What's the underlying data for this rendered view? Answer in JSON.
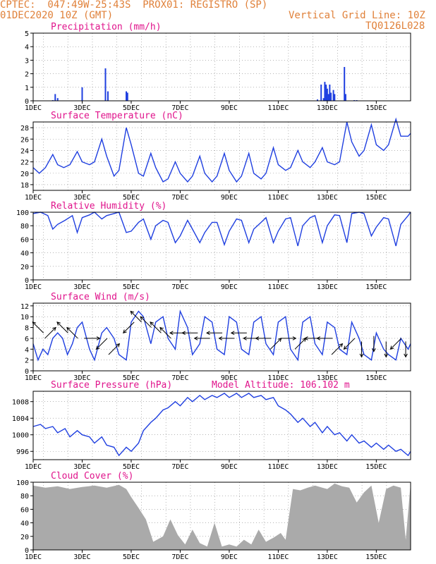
{
  "header": {
    "line1": "CPTEC:  047:49W-25:43S  PROX01: REGISTRO (SP)",
    "line2": "01DEC2020 10Z (GMT)",
    "grid_note": "Vertical Grid Line: 10Z",
    "code": "TQ0126L028"
  },
  "colors": {
    "header_text": "#e0813a",
    "panel_title": "#e0148c",
    "series": "#1f3fe0",
    "cloud_fill": "#aaaaaa",
    "axis": "#000000"
  },
  "chart_data": [
    {
      "type": "bar",
      "title": "Precipitation (mm/h)",
      "x_ticks": [
        "1DEC",
        "3DEC",
        "5DEC",
        "7DEC",
        "9DEC",
        "11DEC",
        "13DEC",
        "15DEC"
      ],
      "x_unit": "days since 1DEC 00Z",
      "xlim": [
        0,
        15.4
      ],
      "ylim": [
        0,
        5
      ],
      "y_ticks": [
        0,
        1,
        2,
        3,
        4,
        5
      ],
      "x": [
        0.8,
        0.9,
        1.0,
        2.0,
        2.95,
        3.05,
        3.8,
        3.85,
        11.6,
        11.75,
        11.85,
        11.9,
        11.95,
        12.0,
        12.05,
        12.1,
        12.15,
        12.25,
        12.3,
        12.7,
        12.75,
        13.1,
        13.2
      ],
      "values": [
        0.05,
        0.5,
        0.2,
        1.0,
        2.4,
        0.7,
        0.7,
        0.6,
        0.1,
        1.2,
        0.2,
        1.4,
        1.2,
        0.9,
        0.5,
        1.2,
        0.6,
        0.8,
        0.5,
        2.5,
        0.5,
        0.05,
        0.05
      ]
    },
    {
      "type": "line",
      "title": "Surface Temperature (nC)",
      "x_ticks": [
        "1DEC",
        "3DEC",
        "5DEC",
        "7DEC",
        "9DEC",
        "11DEC",
        "13DEC",
        "15DEC"
      ],
      "xlim": [
        0,
        15.4
      ],
      "ylim": [
        17,
        29
      ],
      "y_ticks": [
        18,
        20,
        22,
        24,
        26,
        28
      ],
      "x": [
        0,
        0.25,
        0.5,
        0.8,
        1.0,
        1.25,
        1.5,
        1.8,
        2.0,
        2.3,
        2.5,
        2.8,
        3.0,
        3.3,
        3.5,
        3.8,
        4.0,
        4.3,
        4.5,
        4.8,
        5.0,
        5.3,
        5.5,
        5.8,
        6.0,
        6.3,
        6.5,
        6.8,
        7.0,
        7.3,
        7.5,
        7.8,
        8.0,
        8.3,
        8.5,
        8.8,
        9.0,
        9.3,
        9.5,
        9.8,
        10.0,
        10.3,
        10.5,
        10.8,
        11.0,
        11.3,
        11.5,
        11.8,
        12.0,
        12.3,
        12.5,
        12.8,
        13.0,
        13.3,
        13.5,
        13.8,
        14.0,
        14.3,
        14.5,
        14.8,
        15.0,
        15.3,
        15.4
      ],
      "values": [
        21,
        20,
        21,
        23.3,
        21.5,
        21,
        21.5,
        23.8,
        22,
        21.5,
        22,
        26,
        23,
        19.5,
        20.5,
        28,
        25,
        20,
        19.5,
        23.5,
        21,
        18.5,
        19,
        22,
        20,
        18.5,
        19.5,
        23,
        20,
        18.5,
        19.5,
        23.5,
        20.5,
        18.5,
        19.5,
        23.5,
        20,
        19,
        20,
        24.5,
        21.5,
        20.5,
        21,
        24,
        22,
        21,
        22,
        24.5,
        22,
        21.5,
        22,
        29,
        25.5,
        23,
        24,
        28.5,
        25,
        24,
        25,
        29.5,
        26.5,
        26.5,
        27
      ]
    },
    {
      "type": "line",
      "title": "Relative Humidity (%)",
      "x_ticks": [
        "1DEC",
        "3DEC",
        "5DEC",
        "7DEC",
        "9DEC",
        "11DEC",
        "13DEC",
        "15DEC"
      ],
      "xlim": [
        0,
        15.4
      ],
      "ylim": [
        0,
        100
      ],
      "y_ticks": [
        0,
        20,
        40,
        60,
        80,
        100
      ],
      "x": [
        0,
        0.3,
        0.6,
        0.8,
        1.0,
        1.3,
        1.6,
        1.8,
        2.0,
        2.3,
        2.5,
        2.8,
        3.0,
        3.3,
        3.5,
        3.8,
        4.0,
        4.3,
        4.5,
        4.8,
        5.0,
        5.3,
        5.5,
        5.8,
        6.0,
        6.3,
        6.5,
        6.8,
        7.0,
        7.3,
        7.5,
        7.8,
        8.0,
        8.3,
        8.5,
        8.8,
        9.0,
        9.3,
        9.5,
        9.8,
        10.0,
        10.3,
        10.5,
        10.8,
        11.0,
        11.3,
        11.5,
        11.8,
        12.0,
        12.3,
        12.5,
        12.8,
        13.0,
        13.3,
        13.5,
        13.8,
        14.0,
        14.3,
        14.5,
        14.8,
        15.0,
        15.3,
        15.4
      ],
      "values": [
        98,
        100,
        95,
        75,
        82,
        88,
        95,
        70,
        92,
        96,
        100,
        90,
        95,
        98,
        100,
        70,
        72,
        85,
        90,
        60,
        80,
        88,
        85,
        55,
        65,
        88,
        75,
        55,
        70,
        85,
        85,
        52,
        72,
        90,
        88,
        55,
        75,
        85,
        92,
        55,
        72,
        90,
        92,
        50,
        80,
        92,
        95,
        55,
        80,
        96,
        95,
        55,
        98,
        100,
        98,
        65,
        78,
        92,
        90,
        50,
        82,
        95,
        100
      ]
    },
    {
      "type": "line",
      "title": "Surface Wind (m/s)",
      "x_ticks": [
        "1DEC",
        "3DEC",
        "5DEC",
        "7DEC",
        "9DEC",
        "11DEC",
        "13DEC",
        "15DEC"
      ],
      "xlim": [
        0,
        15.4
      ],
      "ylim": [
        0,
        12.5
      ],
      "y_ticks": [
        0,
        2,
        4,
        6,
        8,
        10,
        12
      ],
      "x": [
        0,
        0.2,
        0.4,
        0.6,
        0.8,
        1.0,
        1.2,
        1.4,
        1.6,
        1.8,
        2.0,
        2.3,
        2.5,
        2.8,
        3.0,
        3.3,
        3.5,
        3.8,
        4.0,
        4.3,
        4.5,
        4.8,
        5.0,
        5.3,
        5.5,
        5.8,
        6.0,
        6.3,
        6.5,
        6.8,
        7.0,
        7.3,
        7.5,
        7.8,
        8.0,
        8.3,
        8.5,
        8.8,
        9.0,
        9.3,
        9.5,
        9.8,
        10.0,
        10.3,
        10.5,
        10.8,
        11.0,
        11.3,
        11.5,
        11.8,
        12.0,
        12.3,
        12.5,
        12.8,
        13.0,
        13.3,
        13.5,
        13.8,
        14.0,
        14.3,
        14.5,
        14.8,
        15.0,
        15.3,
        15.4
      ],
      "values": [
        5,
        2,
        4,
        3,
        6,
        7,
        6,
        3,
        5,
        8,
        9,
        4,
        2,
        7,
        8,
        6,
        3,
        2,
        9,
        11,
        10,
        5,
        9,
        10,
        6,
        4,
        11,
        8,
        3,
        5,
        10,
        9,
        4,
        3,
        10,
        9,
        4,
        3,
        9,
        10,
        5,
        3,
        9,
        10,
        4,
        2,
        9,
        10,
        5,
        3,
        9,
        8,
        4,
        3,
        9,
        6,
        3,
        2,
        7,
        4,
        3,
        2,
        6,
        4,
        5
      ],
      "arrows": [
        {
          "x": 0.2,
          "speed": 8,
          "dir": "SE"
        },
        {
          "x": 0.7,
          "speed": 7,
          "dir": "SW"
        },
        {
          "x": 1.2,
          "speed": 8,
          "dir": "SE"
        },
        {
          "x": 1.6,
          "speed": 7,
          "dir": "SE"
        },
        {
          "x": 2.4,
          "speed": 6,
          "dir": "W"
        },
        {
          "x": 2.8,
          "speed": 5,
          "dir": "NE"
        },
        {
          "x": 3.3,
          "speed": 4,
          "dir": "SW"
        },
        {
          "x": 3.9,
          "speed": 8,
          "dir": "NE"
        },
        {
          "x": 4.2,
          "speed": 10,
          "dir": "SE"
        },
        {
          "x": 4.6,
          "speed": 9,
          "dir": "SE"
        },
        {
          "x": 5.0,
          "speed": 8,
          "dir": "SE"
        },
        {
          "x": 5.4,
          "speed": 7,
          "dir": "SE"
        },
        {
          "x": 5.9,
          "speed": 7,
          "dir": "E"
        },
        {
          "x": 6.4,
          "speed": 7,
          "dir": "E"
        },
        {
          "x": 6.9,
          "speed": 6,
          "dir": "E"
        },
        {
          "x": 7.4,
          "speed": 7,
          "dir": "E"
        },
        {
          "x": 7.9,
          "speed": 6,
          "dir": "E"
        },
        {
          "x": 8.4,
          "speed": 7,
          "dir": "E"
        },
        {
          "x": 8.9,
          "speed": 6,
          "dir": "E"
        },
        {
          "x": 9.4,
          "speed": 6,
          "dir": "E"
        },
        {
          "x": 9.9,
          "speed": 5,
          "dir": "SW"
        },
        {
          "x": 10.4,
          "speed": 6,
          "dir": "W"
        },
        {
          "x": 10.9,
          "speed": 5,
          "dir": "SW"
        },
        {
          "x": 11.4,
          "speed": 6,
          "dir": "E"
        },
        {
          "x": 11.9,
          "speed": 6,
          "dir": "E"
        },
        {
          "x": 12.4,
          "speed": 4,
          "dir": "SW"
        },
        {
          "x": 12.9,
          "speed": 5,
          "dir": "NE"
        },
        {
          "x": 13.4,
          "speed": 4,
          "dir": "N"
        },
        {
          "x": 13.9,
          "speed": 5,
          "dir": "N"
        },
        {
          "x": 14.4,
          "speed": 4,
          "dir": "N"
        },
        {
          "x": 14.8,
          "speed": 5,
          "dir": "NE"
        },
        {
          "x": 15.2,
          "speed": 4,
          "dir": "N"
        }
      ]
    },
    {
      "type": "line",
      "title": "Surface Pressure (hPa)",
      "annotation": "Model Altitude: 106.102 m",
      "x_ticks": [
        "1DEC",
        "3DEC",
        "5DEC",
        "7DEC",
        "9DEC",
        "11DEC",
        "13DEC",
        "15DEC"
      ],
      "xlim": [
        0,
        15.4
      ],
      "ylim": [
        994,
        1010.5
      ],
      "y_ticks": [
        996,
        1000,
        1004,
        1008
      ],
      "x": [
        0,
        0.3,
        0.5,
        0.8,
        1.0,
        1.3,
        1.5,
        1.8,
        2.0,
        2.3,
        2.5,
        2.8,
        3.0,
        3.3,
        3.5,
        3.8,
        4.0,
        4.3,
        4.5,
        4.8,
        5.0,
        5.3,
        5.5,
        5.8,
        6.0,
        6.3,
        6.5,
        6.8,
        7.0,
        7.3,
        7.5,
        7.8,
        8.0,
        8.3,
        8.5,
        8.8,
        9.0,
        9.3,
        9.5,
        9.8,
        10.0,
        10.3,
        10.5,
        10.8,
        11.0,
        11.3,
        11.5,
        11.8,
        12.0,
        12.3,
        12.5,
        12.8,
        13.0,
        13.3,
        13.5,
        13.8,
        14.0,
        14.3,
        14.5,
        14.8,
        15.0,
        15.3,
        15.4
      ],
      "values": [
        1002,
        1002.5,
        1001.5,
        1002,
        1000.5,
        1001.5,
        999.5,
        1001,
        1000,
        999.5,
        998,
        999.5,
        997.5,
        997,
        995,
        997,
        996,
        998,
        1001,
        1003,
        1004,
        1006,
        1006.5,
        1008,
        1007,
        1009,
        1008,
        1009.5,
        1008.5,
        1009.5,
        1009,
        1010,
        1009,
        1010,
        1009,
        1010,
        1009,
        1009.5,
        1008.5,
        1009,
        1007,
        1006,
        1005,
        1003,
        1004,
        1002,
        1003,
        1000.5,
        1002,
        1000,
        1000.5,
        998.5,
        1000,
        998,
        998.5,
        997,
        998,
        996.5,
        997.5,
        996,
        996.5,
        995,
        996
      ]
    },
    {
      "type": "area",
      "title": "Cloud Cover (%)",
      "x_ticks": [
        "1DEC",
        "3DEC",
        "5DEC",
        "7DEC",
        "9DEC",
        "11DEC",
        "13DEC",
        "15DEC"
      ],
      "xlim": [
        0,
        15.4
      ],
      "ylim": [
        0,
        100
      ],
      "y_ticks": [
        0,
        20,
        40,
        60,
        80,
        100
      ],
      "x": [
        0,
        0.5,
        1.0,
        1.5,
        2.0,
        2.5,
        3.0,
        3.5,
        3.8,
        4.0,
        4.3,
        4.6,
        4.9,
        5.3,
        5.6,
        5.9,
        6.2,
        6.5,
        6.8,
        7.1,
        7.4,
        7.7,
        8.0,
        8.3,
        8.6,
        8.9,
        9.2,
        9.5,
        9.8,
        10.1,
        10.3,
        10.6,
        10.9,
        11.2,
        11.5,
        11.8,
        12.0,
        12.3,
        12.6,
        12.9,
        13.2,
        13.5,
        13.8,
        14.1,
        14.4,
        14.7,
        15.0,
        15.2,
        15.4
      ],
      "values": [
        95,
        92,
        94,
        90,
        93,
        95,
        92,
        96,
        90,
        78,
        62,
        45,
        12,
        20,
        45,
        22,
        8,
        30,
        10,
        5,
        40,
        5,
        8,
        5,
        15,
        8,
        30,
        12,
        18,
        25,
        15,
        90,
        88,
        92,
        95,
        92,
        90,
        98,
        94,
        92,
        70,
        85,
        95,
        40,
        90,
        95,
        92,
        15,
        98
      ]
    }
  ]
}
